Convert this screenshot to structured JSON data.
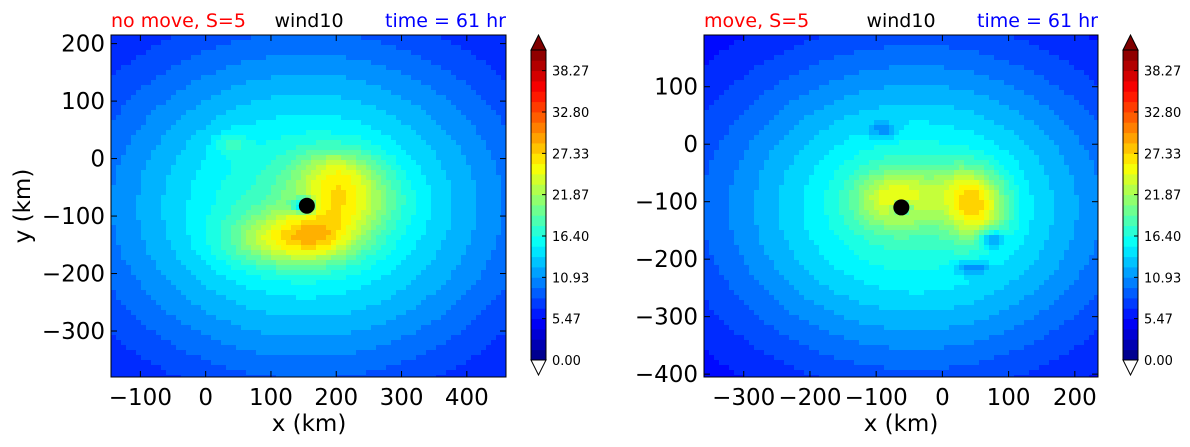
{
  "chart_data": [
    {
      "type": "heatmap",
      "title_left": "no move, S=5",
      "title_center": "wind10",
      "title_right": "time = 61 hr",
      "title_left_color": "#ff0000",
      "title_right_color": "#0000ff",
      "xlabel": "x (km)",
      "ylabel": "y (km)",
      "xlim": [
        -145,
        460
      ],
      "ylim": [
        -380,
        215
      ],
      "xticks": [
        "−100",
        "0",
        "100",
        "200",
        "300",
        "400"
      ],
      "xtick_values": [
        -100,
        0,
        100,
        200,
        300,
        400
      ],
      "yticks": [
        "200",
        "100",
        "0",
        "−100",
        "−200",
        "−300"
      ],
      "ytick_values": [
        200,
        100,
        0,
        -100,
        -200,
        -300
      ],
      "center_marker": {
        "x": 155,
        "y": -82
      },
      "wind_features": [
        {
          "x": 155,
          "y": -82,
          "value": 14,
          "sx": 340,
          "sy": 300
        },
        {
          "x": 210,
          "y": -75,
          "value": 8,
          "sx": 75,
          "sy": 55
        },
        {
          "x": 125,
          "y": -140,
          "value": 8,
          "sx": 85,
          "sy": 45
        },
        {
          "x": 200,
          "y": -20,
          "value": 5,
          "sx": 60,
          "sy": 40
        },
        {
          "x": 180,
          "y": -140,
          "value": 4,
          "sx": 60,
          "sy": 40
        },
        {
          "x": 40,
          "y": 25,
          "value": 3,
          "sx": 25,
          "sy": 20
        },
        {
          "x": 150,
          "y": -82,
          "value": -10,
          "sx": 18,
          "sy": 14
        }
      ],
      "colorbar": {
        "min": 0.0,
        "max": 41.0,
        "ticks": [
          "0.00",
          "5.47",
          "10.93",
          "16.40",
          "21.87",
          "27.33",
          "32.80",
          "38.27"
        ],
        "tick_values": [
          0.0,
          5.47,
          10.93,
          16.4,
          21.87,
          27.33,
          32.8,
          38.27
        ],
        "extend": "both"
      }
    },
    {
      "type": "heatmap",
      "title_left": "move, S=5",
      "title_center": "wind10",
      "title_right": "time = 61 hr",
      "title_left_color": "#ff0000",
      "title_right_color": "#0000ff",
      "xlabel": "x (km)",
      "ylabel": "",
      "xlim": [
        -360,
        235
      ],
      "ylim": [
        -405,
        190
      ],
      "xticks": [
        "−300",
        "−200",
        "−100",
        "0",
        "100",
        "200"
      ],
      "xtick_values": [
        -300,
        -200,
        -100,
        0,
        100,
        200
      ],
      "yticks": [
        "100",
        "0",
        "−100",
        "−200",
        "−300",
        "−400"
      ],
      "ytick_values": [
        100,
        0,
        -100,
        -200,
        -300,
        -400
      ],
      "center_marker": {
        "x": -62,
        "y": -110
      },
      "wind_features": [
        {
          "x": -40,
          "y": -110,
          "value": 14,
          "sx": 320,
          "sy": 280
        },
        {
          "x": -70,
          "y": -95,
          "value": 8,
          "sx": 60,
          "sy": 50
        },
        {
          "x": 50,
          "y": -110,
          "value": 10,
          "sx": 45,
          "sy": 55
        },
        {
          "x": 25,
          "y": -70,
          "value": 3,
          "sx": 50,
          "sy": 40
        },
        {
          "x": -90,
          "y": 25,
          "value": -4,
          "sx": 20,
          "sy": 14
        },
        {
          "x": 75,
          "y": -165,
          "value": -7,
          "sx": 18,
          "sy": 15
        },
        {
          "x": 45,
          "y": -215,
          "value": -5,
          "sx": 25,
          "sy": 12
        },
        {
          "x": -60,
          "y": -110,
          "value": -8,
          "sx": 15,
          "sy": 12
        }
      ],
      "colorbar": {
        "min": 0.0,
        "max": 41.0,
        "ticks": [
          "0.00",
          "5.47",
          "10.93",
          "16.40",
          "21.87",
          "27.33",
          "32.80",
          "38.27"
        ],
        "tick_values": [
          0.0,
          5.47,
          10.93,
          16.4,
          21.87,
          27.33,
          32.8,
          38.27
        ],
        "extend": "both"
      }
    }
  ],
  "colormap": [
    "#00007f",
    "#0000ff",
    "#007fff",
    "#00ffff",
    "#7fff7f",
    "#ffff00",
    "#ff7f00",
    "#ff0000",
    "#7f0000"
  ]
}
